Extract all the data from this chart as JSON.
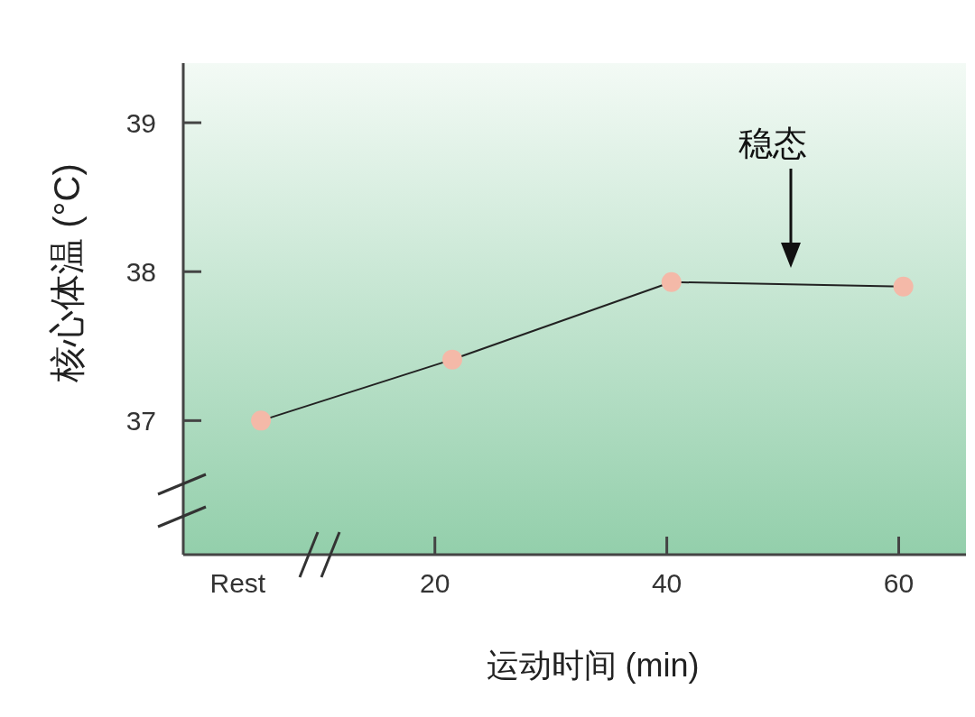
{
  "chart_data": {
    "type": "line",
    "xlabel": "运动时间 (min)",
    "ylabel": "核心体温 (°C)",
    "x": [
      5,
      21.5,
      40.4,
      60.4
    ],
    "series": [
      {
        "color": "#f4b9a8",
        "values": [
          37.0,
          37.41,
          37.93,
          37.9
        ]
      }
    ],
    "xlim": [
      -1.7,
      65.8
    ],
    "xticks": [
      {
        "value": 3,
        "label": "Rest"
      },
      20,
      40,
      60
    ],
    "ylim": [
      36.1,
      39.4
    ],
    "yticks": [
      37,
      38,
      39
    ],
    "annotations": [
      "稳态"
    ],
    "marker": "circle",
    "line_style": "solid",
    "grid": false
  }
}
